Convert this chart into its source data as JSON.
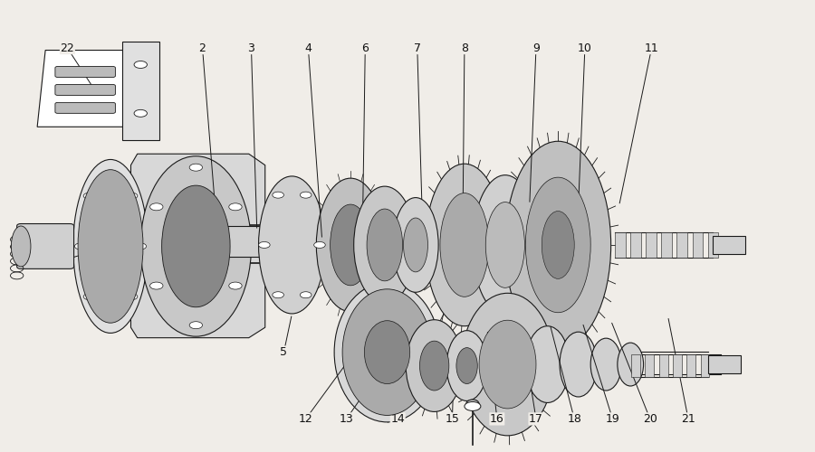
{
  "title": "",
  "background_color": "#f0ede8",
  "line_color": "#1a1a1a",
  "figure_width": 9.0,
  "figure_height": 5.0,
  "dpi": 100,
  "annotation_fontsize": 9,
  "annotation_color": "#111111",
  "line_width": 0.8
}
